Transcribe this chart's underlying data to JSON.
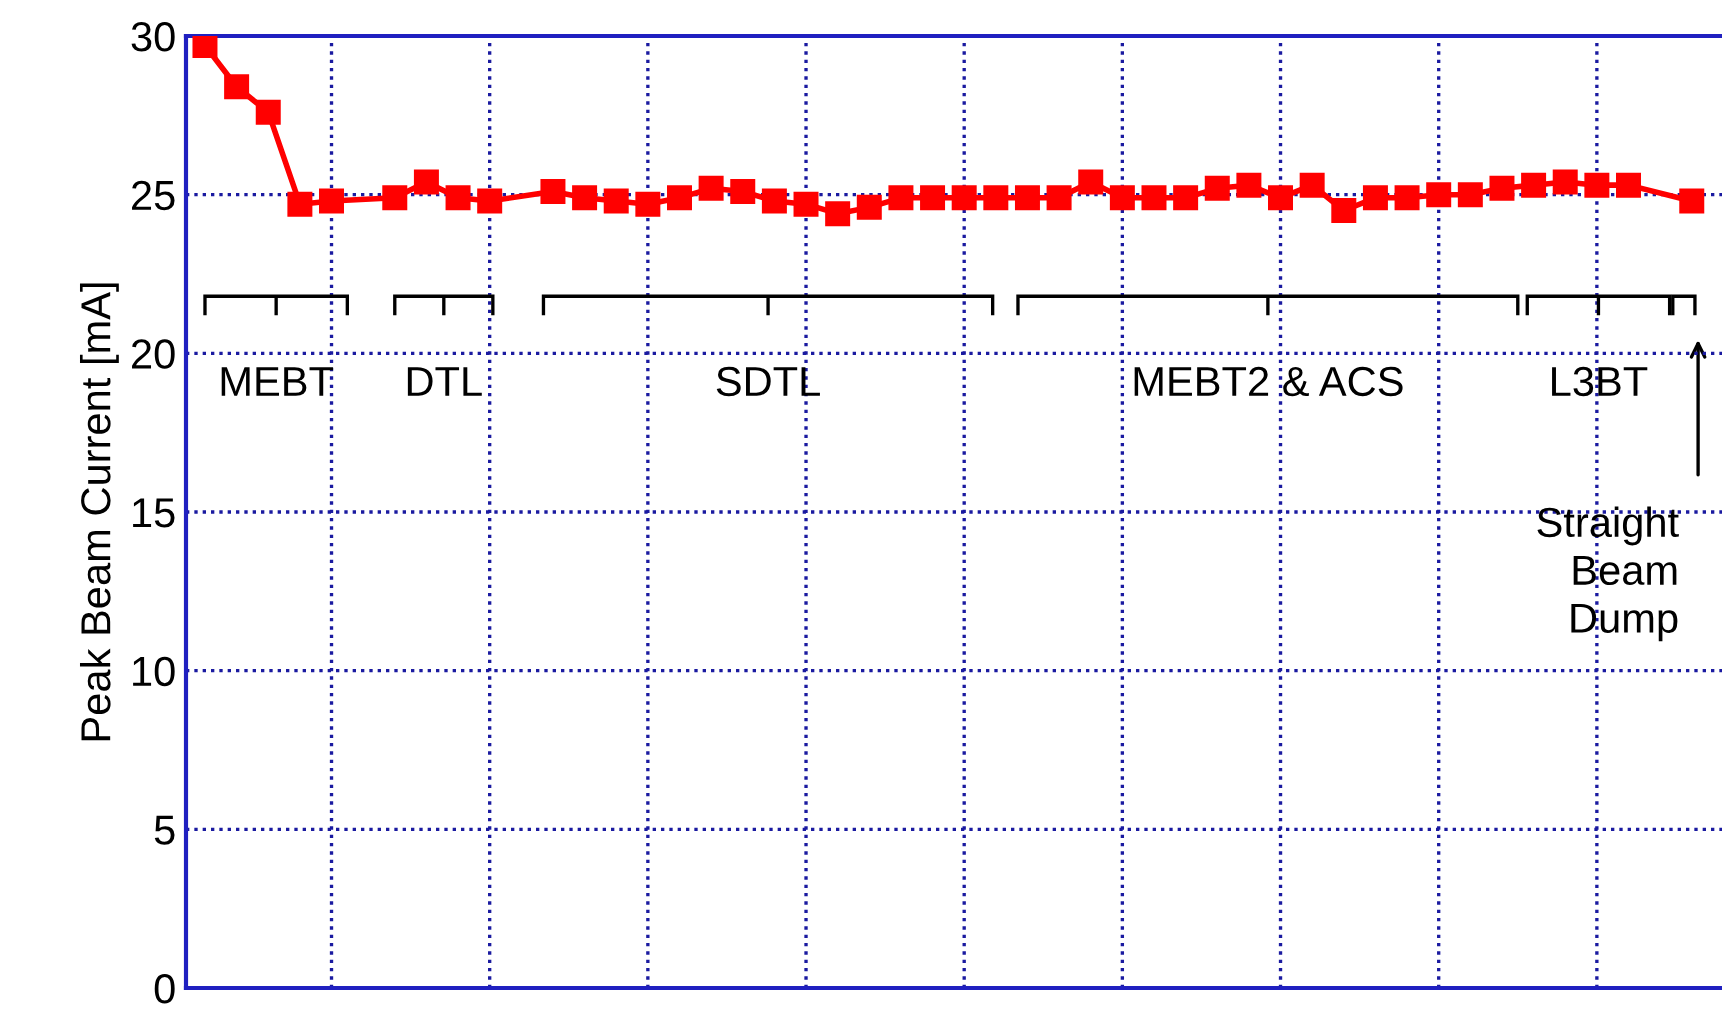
{
  "chart_data": {
    "type": "line",
    "ylabel": "Peak Beam Current [mA]",
    "categories": [
      null,
      null,
      null,
      null,
      null,
      null,
      null,
      null,
      null,
      null,
      null,
      null,
      null,
      null,
      null,
      null,
      null,
      null,
      null,
      null,
      null,
      null,
      null,
      null,
      null,
      null,
      null,
      null,
      null,
      null,
      null,
      null,
      null,
      null,
      null,
      null,
      null,
      null,
      null,
      null,
      null,
      null,
      null,
      null,
      null,
      null,
      null,
      null
    ],
    "series": [
      {
        "color": "#ff0000",
        "values": [
          29.7,
          28.4,
          27.6,
          24.7,
          24.8,
          null,
          24.9,
          25.4,
          24.9,
          24.8,
          null,
          25.1,
          24.9,
          24.8,
          24.7,
          24.9,
          25.2,
          25.1,
          24.8,
          24.7,
          24.4,
          24.6,
          24.9,
          24.9,
          24.9,
          24.9,
          24.9,
          24.9,
          25.4,
          24.9,
          24.9,
          24.9,
          25.2,
          25.3,
          24.9,
          25.3,
          24.5,
          24.9,
          24.9,
          25.0,
          25.0,
          25.2,
          25.3,
          25.4,
          25.3,
          25.3,
          null,
          24.8
        ]
      }
    ],
    "ylim": [
      0,
      30
    ],
    "yticks": [
      0,
      5,
      10,
      15,
      20,
      25,
      30
    ],
    "grid": true,
    "marker": "square",
    "line_style": "solid",
    "tick_labels": "y",
    "annotations": [
      "MEBT",
      "DTL",
      "SDTL",
      "MEBT2 & ACS",
      "L3BT",
      "Straight\nBeam\nDump"
    ]
  }
}
